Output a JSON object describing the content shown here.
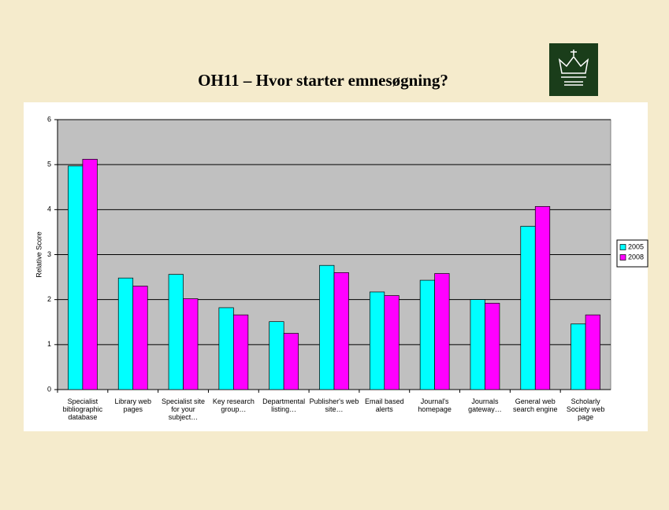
{
  "chart_data": {
    "type": "bar",
    "title": "OH11 – Hvor starter emnesøgning?",
    "y_label": "Relative Score",
    "categories": [
      "Specialist bibliographic database",
      "Library web pages",
      "Specialist site for your subject…",
      "Key research group…",
      "Departmental listing…",
      "Publisher's web site…",
      "Email based alerts",
      "Journal's homepage",
      "Journals gateway…",
      "General web search engine",
      "Scholarly Society web page"
    ],
    "series": [
      {
        "name": "2005",
        "color": "#00ffff",
        "values": [
          4.97,
          2.48,
          2.56,
          1.82,
          1.51,
          2.76,
          2.17,
          2.43,
          2.0,
          3.63,
          1.46
        ]
      },
      {
        "name": "2008",
        "color": "#ff00ff",
        "values": [
          5.12,
          2.3,
          2.02,
          1.66,
          1.25,
          2.6,
          2.09,
          2.58,
          1.92,
          4.07,
          1.66
        ]
      }
    ],
    "ylim": [
      0,
      6
    ],
    "yticks": [
      0,
      1,
      2,
      3,
      4,
      5,
      6
    ],
    "grid": true,
    "legend": "right"
  }
}
